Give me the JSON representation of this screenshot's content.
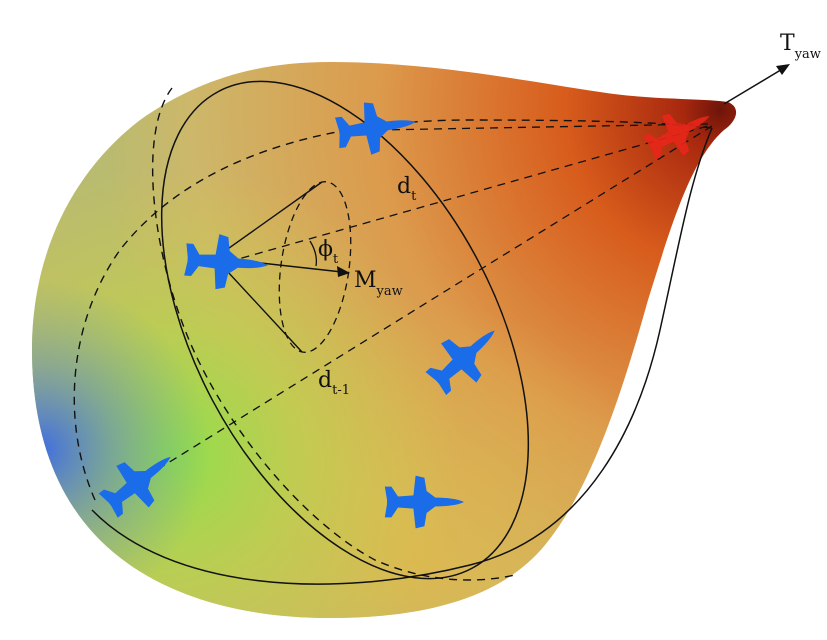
{
  "labels": {
    "target_yaw": {
      "main": "T",
      "sub": "yaw"
    },
    "missile_yaw": {
      "main": "M",
      "sub": "yaw"
    },
    "phi_t": {
      "main": "ϕ",
      "sub": "t"
    },
    "d_t": {
      "main": "d",
      "sub": "t"
    },
    "d_t_minus_1": {
      "main": "d",
      "sub": "t-1"
    }
  },
  "colors": {
    "friendly_aircraft": "#1a6ce8",
    "target_aircraft": "#e8261a",
    "gradient_green": "#8ee04a",
    "gradient_blue": "#3f6ee0",
    "gradient_orange": "#d9621d",
    "gradient_dark_red": "#7a1a0c",
    "line": "#111111"
  },
  "icons": {
    "friendly": "fighter-jet-icon",
    "target": "fighter-jet-icon"
  }
}
